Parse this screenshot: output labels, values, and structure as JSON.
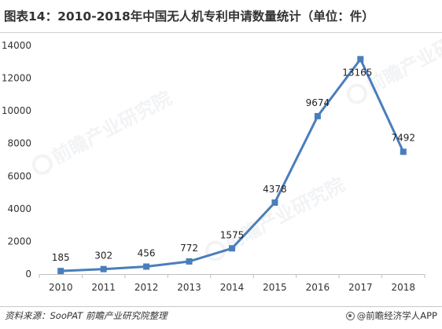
{
  "title": "图表14：2010-2018年中国无人机专利申请数量统计（单位：件）",
  "chart_data": {
    "type": "line",
    "categories": [
      "2010",
      "2011",
      "2012",
      "2013",
      "2014",
      "2015",
      "2016",
      "2017",
      "2018"
    ],
    "values": [
      185,
      302,
      456,
      772,
      1575,
      4378,
      9674,
      13165,
      7492
    ],
    "data_labels": [
      "185",
      "302",
      "456",
      "772",
      "1575",
      "4378",
      "9674",
      "13165",
      "7492"
    ],
    "y_ticks": [
      "0",
      "2000",
      "4000",
      "6000",
      "8000",
      "10000",
      "12000",
      "14000"
    ],
    "ylim": [
      0,
      14000
    ],
    "xlabel": "",
    "ylabel": "",
    "grid": false,
    "legend": "none",
    "line_color": "#4a7ebb",
    "marker": "square"
  },
  "watermark": {
    "text": "前瞻产业研究院"
  },
  "footer": {
    "source": "资料来源：SooPAT 前瞻产业研究院整理",
    "brand": "@前瞻经济学人APP"
  }
}
